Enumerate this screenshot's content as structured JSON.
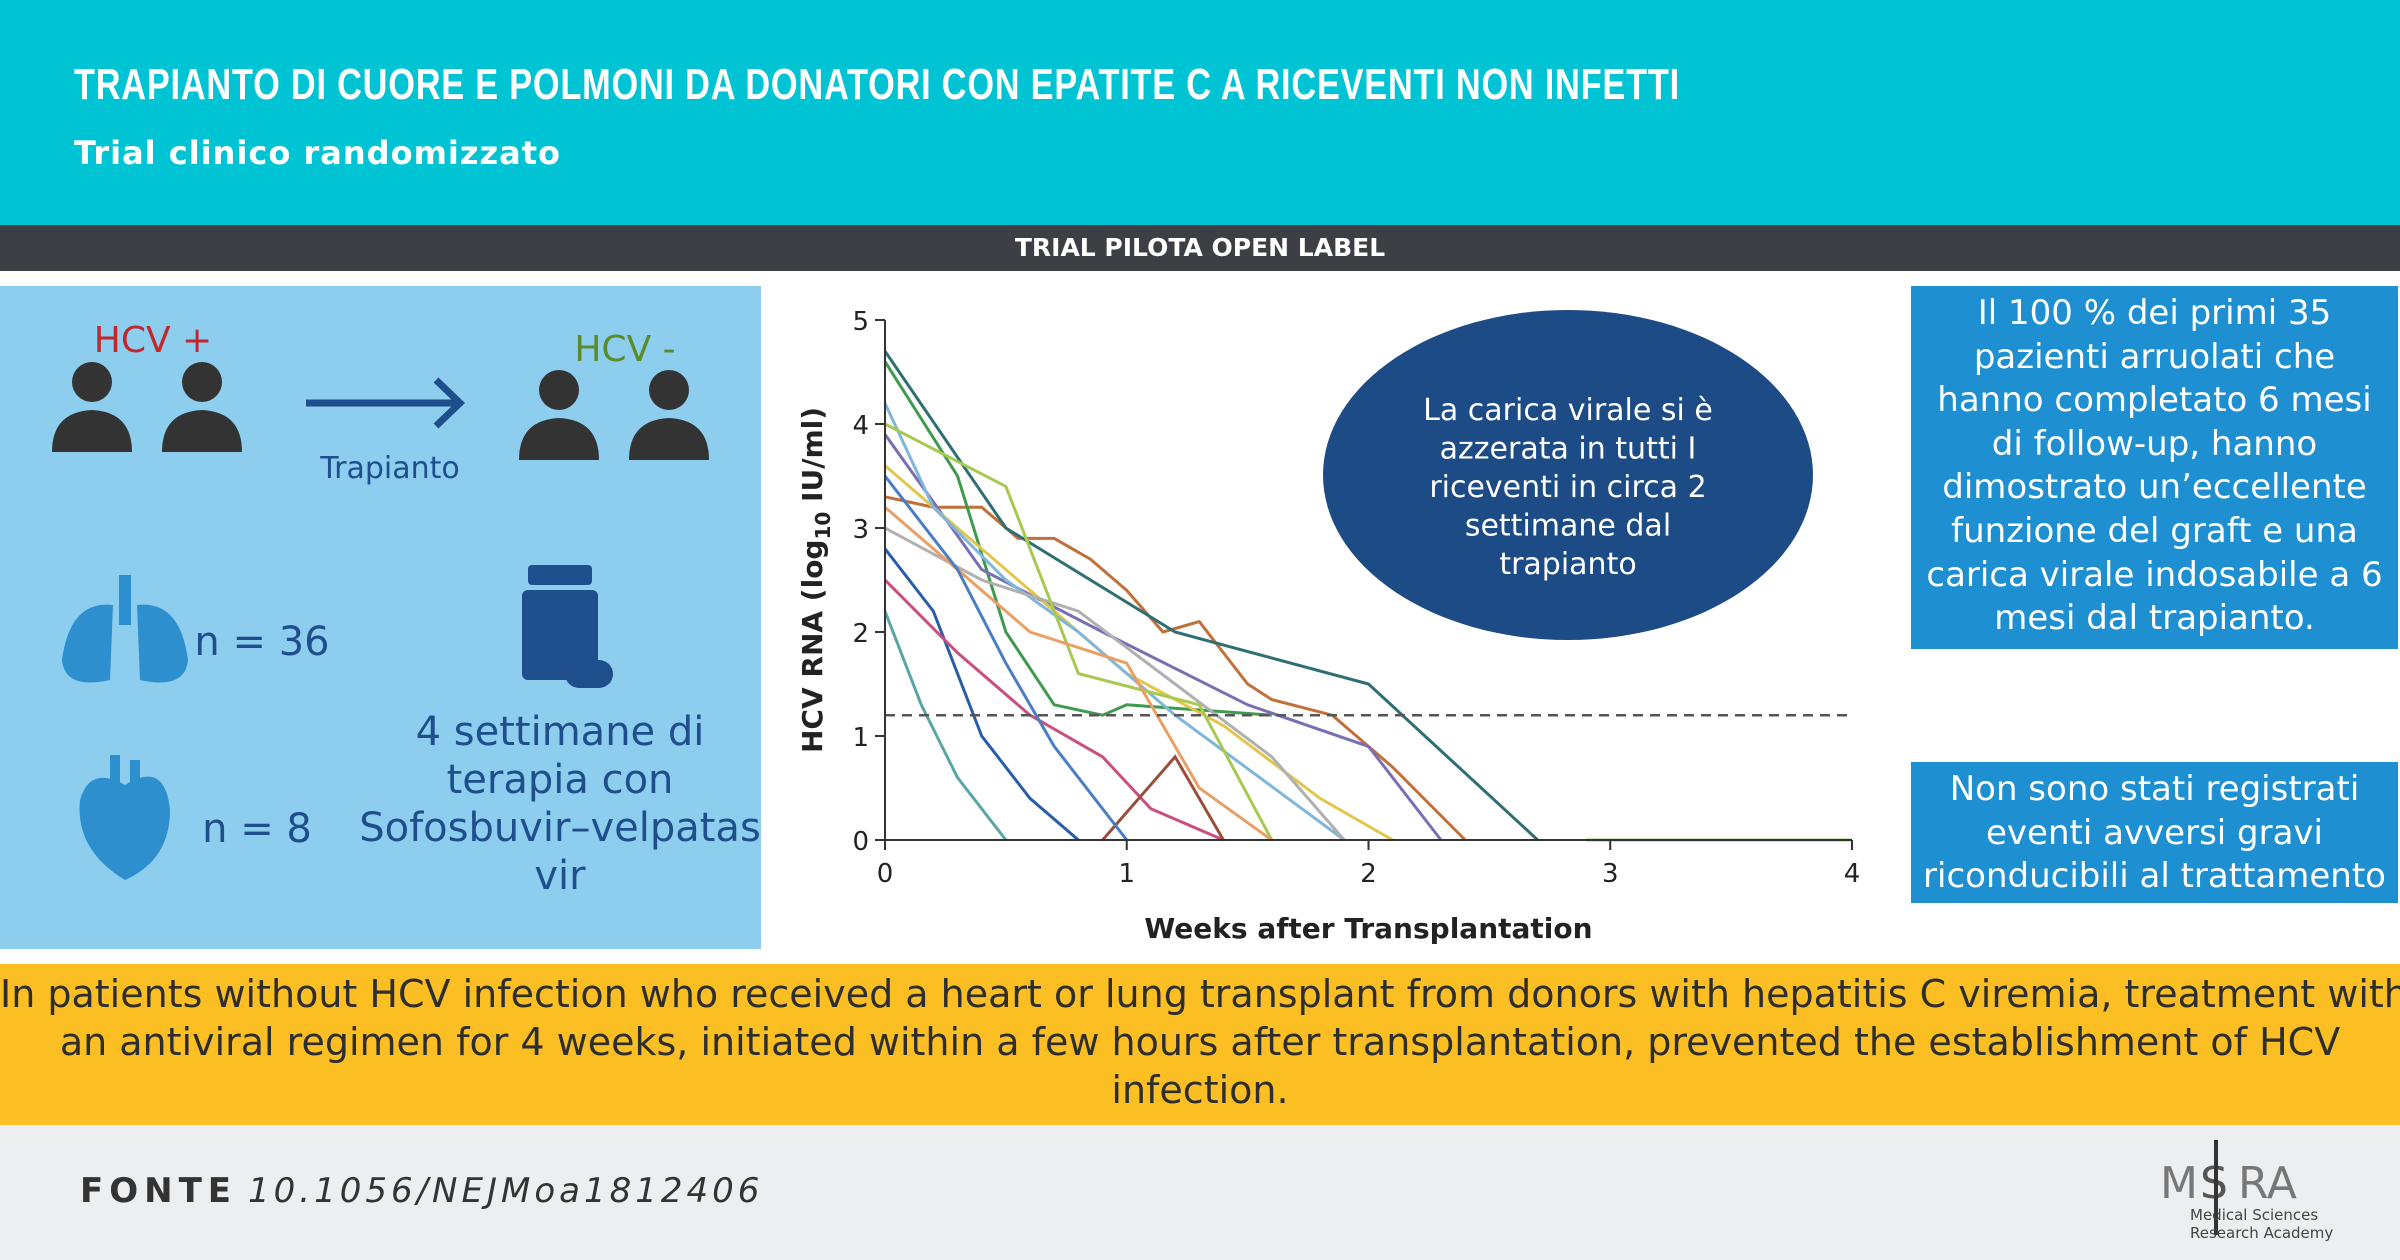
{
  "header": {
    "title": "TRAPIANTO DI CUORE E POLMONI DA DONATORI CON EPATITE C A RICEVENTI NON INFETTI",
    "subtitle": "Trial clinico randomizzato"
  },
  "banner": "TRIAL PILOTA OPEN LABEL",
  "left_panel": {
    "donor": "HCV +",
    "recipient": "HCV -",
    "arrow_label": "Trapianto",
    "lung": "n = 36",
    "heart": "n = 8",
    "therapy": [
      "4 settimane di",
      "terapia con",
      "Sofosbuvir–velpatas",
      "vir"
    ]
  },
  "chart_data": {
    "type": "line",
    "xlabel": "Weeks after Transplantation",
    "ylabel": [
      "HCV RNA (log",
      "10",
      " IU/ml)"
    ],
    "xlim": [
      0,
      4
    ],
    "ylim": [
      0,
      5
    ],
    "xticks": [
      0,
      1,
      2,
      3,
      4
    ],
    "yticks": [
      0,
      1,
      2,
      3,
      4,
      5
    ],
    "reference_line": 1.2,
    "series": [
      {
        "color": "#c0703a",
        "x": [
          0,
          0.2,
          0.4,
          0.55,
          0.7,
          0.85,
          1.0,
          1.15,
          1.3,
          1.5,
          1.6,
          1.85,
          2.1,
          2.4
        ],
        "values": [
          3.3,
          3.2,
          3.2,
          2.9,
          2.9,
          2.7,
          2.4,
          2.0,
          2.1,
          1.5,
          1.35,
          1.2,
          0.7,
          0
        ]
      },
      {
        "color": "#2f6f74",
        "x": [
          0,
          0.5,
          1.2,
          2.0,
          2.7
        ],
        "values": [
          4.7,
          3.0,
          2.0,
          1.5,
          0
        ]
      },
      {
        "color": "#3f9a4f",
        "x": [
          0,
          0.3,
          0.5,
          0.7,
          0.9,
          1.0,
          1.6
        ],
        "values": [
          4.6,
          3.5,
          2.0,
          1.3,
          1.2,
          1.3,
          1.2
        ]
      },
      {
        "color": "#8fd16f",
        "x": [
          2.9,
          4
        ],
        "values": [
          0,
          0
        ]
      },
      {
        "color": "#7a6fb3",
        "x": [
          0,
          0.4,
          0.9,
          1.5,
          2.0,
          2.3
        ],
        "values": [
          3.9,
          2.6,
          2.0,
          1.3,
          0.9,
          0
        ]
      },
      {
        "color": "#e2c64a",
        "x": [
          0,
          0.3,
          0.6,
          1.0,
          1.4,
          1.8,
          2.1
        ],
        "values": [
          3.6,
          3.0,
          2.4,
          1.6,
          1.1,
          0.4,
          0
        ]
      },
      {
        "color": "#7fb6d9",
        "x": [
          0,
          0.2,
          0.5,
          0.8,
          1.2,
          1.9
        ],
        "values": [
          4.2,
          3.2,
          2.5,
          2.0,
          1.2,
          0
        ]
      },
      {
        "color": "#b0b0b0",
        "x": [
          0,
          0.4,
          0.8,
          1.2,
          1.6,
          1.9
        ],
        "values": [
          3.0,
          2.5,
          2.2,
          1.5,
          0.8,
          0
        ]
      },
      {
        "color": "#2a5da8",
        "x": [
          0,
          0.2,
          0.4,
          0.6,
          0.8
        ],
        "values": [
          2.8,
          2.2,
          1.0,
          0.4,
          0
        ]
      },
      {
        "color": "#c84f7f",
        "x": [
          0,
          0.3,
          0.6,
          0.9,
          1.1,
          1.4
        ],
        "values": [
          2.5,
          1.8,
          1.2,
          0.8,
          0.3,
          0
        ]
      },
      {
        "color": "#a7c94f",
        "x": [
          0,
          0.5,
          0.8,
          1.3,
          1.6
        ],
        "values": [
          4.0,
          3.4,
          1.6,
          1.3,
          0
        ]
      },
      {
        "color": "#5aa6a6",
        "x": [
          0,
          0.15,
          0.3,
          0.5
        ],
        "values": [
          2.2,
          1.3,
          0.6,
          0
        ]
      },
      {
        "color": "#e8a066",
        "x": [
          0,
          0.6,
          1.0,
          1.3,
          1.6
        ],
        "values": [
          3.2,
          2.0,
          1.7,
          0.5,
          0
        ]
      },
      {
        "color": "#9a4f3a",
        "x": [
          0.9,
          1.2,
          1.4
        ],
        "values": [
          0,
          0.8,
          0
        ]
      },
      {
        "color": "#4a7ec4",
        "x": [
          0,
          0.3,
          0.5,
          0.7,
          1.0
        ],
        "values": [
          3.5,
          2.6,
          1.7,
          0.9,
          0
        ]
      }
    ]
  },
  "ellipse": [
    "La carica virale si è",
    "azzerata in tutti I",
    "riceventi in circa 2",
    "settimane dal",
    "trapianto"
  ],
  "box1": [
    "Il 100 % dei primi 35",
    "pazienti arruolati che",
    "hanno completato 6 mesi",
    "di follow-up, hanno",
    "dimostrato un’eccellente",
    "funzione del graft e una",
    "carica virale indosabile a 6",
    "mesi dal trapianto."
  ],
  "box2": [
    "Non sono stati registrati",
    "eventi avversi gravi",
    "riconducibili al trattamento"
  ],
  "conclusion": [
    "In patients without HCV infection who received a heart or lung transplant from donors with hepatitis C viremia, treatment with",
    "an antiviral regimen for 4 weeks, initiated within a few hours after transplantation, prevented the establishment of HCV",
    "infection."
  ],
  "footer": {
    "label": "FONTE",
    "doi": "10.1056/NEJMoa1812406"
  },
  "logo": {
    "left": "M",
    "mid": "S",
    "right": "RA",
    "line1": "Medical Sciences",
    "line2": "Research Academy"
  }
}
